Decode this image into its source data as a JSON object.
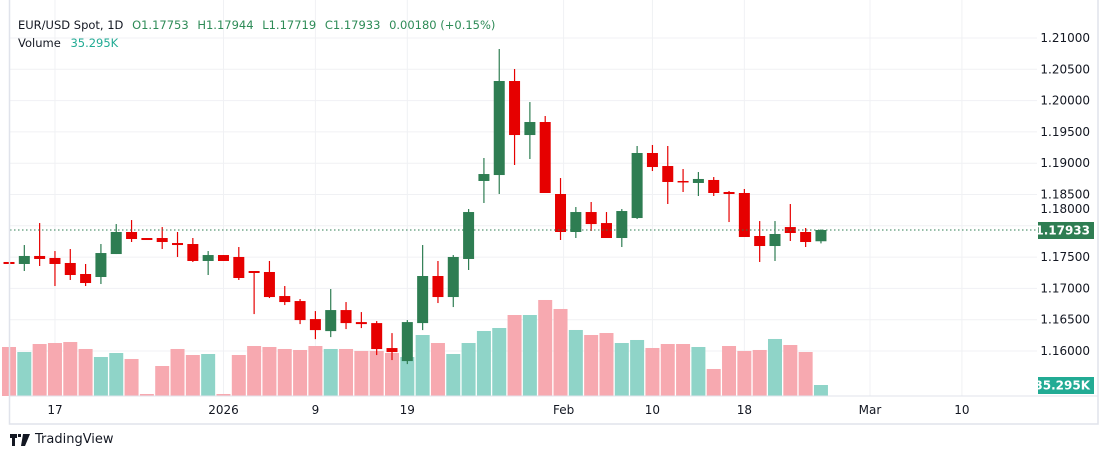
{
  "legend": {
    "symbol": "EUR/USD Spot, 1D",
    "open": "O1.17753",
    "high": "H1.17944",
    "low": "L1.17719",
    "close": "C1.17933",
    "change": "0.00180 (+0.15%)",
    "volume_label": "Volume",
    "volume_value": "35.295K"
  },
  "brand": {
    "name": "TradingView"
  },
  "colors": {
    "up": "#2e7d52",
    "down": "#e60000",
    "volume_up": "#8fd4c8",
    "volume_down": "#f7a9b0",
    "volume_badge": "#22ab94",
    "grid": "#f0f1f4"
  },
  "chart_data": {
    "type": "candlestick",
    "symbol": "EUR/USD Spot",
    "interval": "1D",
    "ylim": [
      1.1555,
      1.2115
    ],
    "y_ticks": [
      "1.21000",
      "1.20500",
      "1.20000",
      "1.19500",
      "1.19000",
      "1.18500",
      "1.18000",
      "1.17500",
      "1.17000",
      "1.16500",
      "1.16000"
    ],
    "x_ticks": [
      {
        "label": "17",
        "bar": 3
      },
      {
        "label": "2026",
        "bar": 14
      },
      {
        "label": "9",
        "bar": 20
      },
      {
        "label": "19",
        "bar": 26
      },
      {
        "label": "Feb",
        "bar": 36.2
      },
      {
        "label": "10",
        "bar": 42
      },
      {
        "label": "18",
        "bar": 48
      },
      {
        "label": "Mar",
        "bar": 56.2
      },
      {
        "label": "10",
        "bar": 62.2
      }
    ],
    "last_price": "1.17933",
    "last_volume": "35.295K",
    "grid": true,
    "ohlc": [
      [
        1.17422,
        1.17422,
        1.1739,
        1.1739
      ],
      [
        1.1739,
        1.17693,
        1.17278,
        1.17518
      ],
      [
        1.17518,
        1.18044,
        1.17358,
        1.1747
      ],
      [
        1.17486,
        1.17597,
        1.17038,
        1.1739
      ],
      [
        1.17406,
        1.17629,
        1.17134,
        1.17214
      ],
      [
        1.1723,
        1.1739,
        1.17038,
        1.17086
      ],
      [
        1.17182,
        1.17709,
        1.1707,
        1.17565
      ],
      [
        1.17549,
        1.18028,
        1.17549,
        1.17901
      ],
      [
        1.17901,
        1.18092,
        1.17741,
        1.17789
      ],
      [
        1.17805,
        1.17805,
        1.17773,
        1.17773
      ],
      [
        1.17805,
        1.1798,
        1.17629,
        1.17741
      ],
      [
        1.17725,
        1.17901,
        1.17502,
        1.17693
      ],
      [
        1.17709,
        1.17805,
        1.17422,
        1.17438
      ],
      [
        1.17438,
        1.17597,
        1.17214,
        1.17533
      ],
      [
        1.17533,
        1.17533,
        1.17438,
        1.17438
      ],
      [
        1.17502,
        1.17661,
        1.17134,
        1.17166
      ],
      [
        1.17278,
        1.17278,
        1.1659,
        1.17246
      ],
      [
        1.17262,
        1.17438,
        1.16846,
        1.16862
      ],
      [
        1.16878,
        1.17038,
        1.16734,
        1.16782
      ],
      [
        1.16798,
        1.1683,
        1.1643,
        1.16494
      ],
      [
        1.1651,
        1.16638,
        1.1619,
        1.16334
      ],
      [
        1.16318,
        1.1699,
        1.16222,
        1.16654
      ],
      [
        1.16654,
        1.16782,
        1.1635,
        1.16446
      ],
      [
        1.16462,
        1.16622,
        1.16366,
        1.1643
      ],
      [
        1.16446,
        1.16478,
        1.15935,
        1.16031
      ],
      [
        1.16047,
        1.16286,
        1.15855,
        1.15983
      ],
      [
        1.15839,
        1.16494,
        1.15791,
        1.16462
      ],
      [
        1.16446,
        1.17693,
        1.16334,
        1.17198
      ],
      [
        1.17198,
        1.17438,
        1.16766,
        1.16862
      ],
      [
        1.16862,
        1.17533,
        1.16702,
        1.17502
      ],
      [
        1.1747,
        1.18268,
        1.17294,
        1.1822
      ],
      [
        1.18716,
        1.19083,
        1.18364,
        1.18827
      ],
      [
        1.18811,
        1.20824,
        1.18508,
        1.20313
      ],
      [
        1.20313,
        1.20505,
        1.18971,
        1.1945
      ],
      [
        1.1945,
        1.19977,
        1.19067,
        1.19658
      ],
      [
        1.19658,
        1.19754,
        1.18524,
        1.18524
      ],
      [
        1.18508,
        1.18763,
        1.17773,
        1.17901
      ],
      [
        1.17901,
        1.183,
        1.17805,
        1.1822
      ],
      [
        1.1822,
        1.1838,
        1.17917,
        1.18028
      ],
      [
        1.18044,
        1.1822,
        1.17805,
        1.17805
      ],
      [
        1.17805,
        1.18268,
        1.17661,
        1.18236
      ],
      [
        1.18124,
        1.19275,
        1.18108,
        1.19163
      ],
      [
        1.19163,
        1.19291,
        1.18875,
        1.18939
      ],
      [
        1.18955,
        1.19275,
        1.18348,
        1.187
      ],
      [
        1.18716,
        1.18907,
        1.1854,
        1.187
      ],
      [
        1.18684,
        1.18859,
        1.18476,
        1.18748
      ],
      [
        1.18732,
        1.18779,
        1.18476,
        1.18524
      ],
      [
        1.1854,
        1.18556,
        1.1806,
        1.18508
      ],
      [
        1.18524,
        1.18588,
        1.17821,
        1.17821
      ],
      [
        1.17837,
        1.18076,
        1.17422,
        1.17677
      ],
      [
        1.17677,
        1.18076,
        1.17438,
        1.17869
      ],
      [
        1.1798,
        1.18348,
        1.17757,
        1.17885
      ],
      [
        1.17901,
        1.17965,
        1.17661,
        1.17741
      ],
      [
        1.17753,
        1.17944,
        1.17719,
        1.17933
      ]
    ],
    "volume_k": [
      157.3,
      141.2,
      166.9,
      170.1,
      173.3,
      150.9,
      125.2,
      138.0,
      118.8,
      6.4,
      96.3,
      150.9,
      131.6,
      134.8,
      6.4,
      131.6,
      160.5,
      157.3,
      150.9,
      147.7,
      160.5,
      150.9,
      150.9,
      144.5,
      144.5,
      138.0,
      125.2,
      195.8,
      170.1,
      134.8,
      170.1,
      208.7,
      218.3,
      260.0,
      260.0,
      308.2,
      279.3,
      211.9,
      195.8,
      202.2,
      170.1,
      179.8,
      154.1,
      166.9,
      166.9,
      157.3,
      86.7,
      160.5,
      144.5,
      147.7,
      183.0,
      163.7,
      141.2,
      35.295
    ]
  }
}
